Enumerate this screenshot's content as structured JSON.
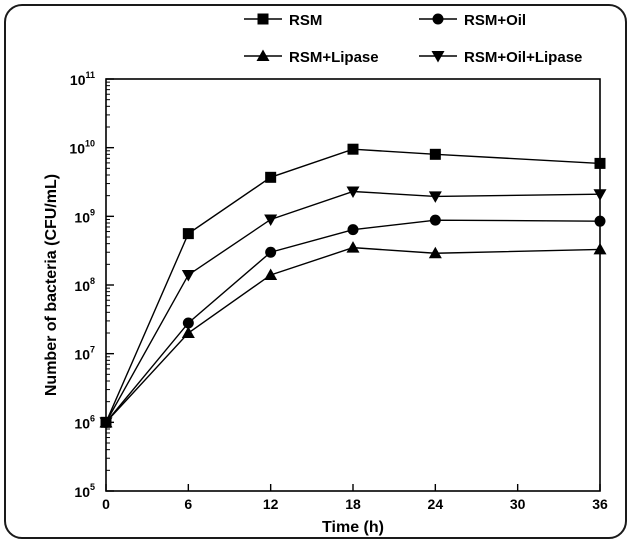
{
  "chart_data": {
    "type": "line",
    "xlabel": "Time (h)",
    "ylabel": "Number of bacteria  (CFU/mL)",
    "x": [
      0,
      6,
      12,
      18,
      24,
      36
    ],
    "xticks": [
      "0",
      "6",
      "12",
      "18",
      "24",
      "30",
      "36"
    ],
    "xlim": [
      0,
      36
    ],
    "y_scale": "log",
    "ylim": [
      100000,
      100000000000
    ],
    "yticks": [
      {
        "base": "10",
        "exp": "5"
      },
      {
        "base": "10",
        "exp": "6"
      },
      {
        "base": "10",
        "exp": "7"
      },
      {
        "base": "10",
        "exp": "8"
      },
      {
        "base": "10",
        "exp": "9"
      },
      {
        "base": "10",
        "exp": "10"
      },
      {
        "base": "10",
        "exp": "11"
      }
    ],
    "grid": false,
    "legend_position": "top",
    "series": [
      {
        "name": "RSM",
        "marker": "square",
        "values": [
          1000000,
          560000000,
          3700000000,
          9500000000,
          8000000000,
          5900000000
        ]
      },
      {
        "name": "RSM+Oil",
        "marker": "circle",
        "values": [
          1000000,
          28000000,
          300000000,
          640000000,
          880000000,
          850000000
        ]
      },
      {
        "name": "RSM+Lipase",
        "marker": "triangle-up",
        "values": [
          1000000,
          20000000,
          140000000,
          350000000,
          290000000,
          330000000
        ]
      },
      {
        "name": "RSM+Oil+Lipase",
        "marker": "triangle-down",
        "values": [
          1000000,
          140000000,
          900000000,
          2300000000,
          1950000000,
          2100000000
        ]
      }
    ],
    "colors": {
      "line": "#000000",
      "marker": "#000000"
    }
  }
}
